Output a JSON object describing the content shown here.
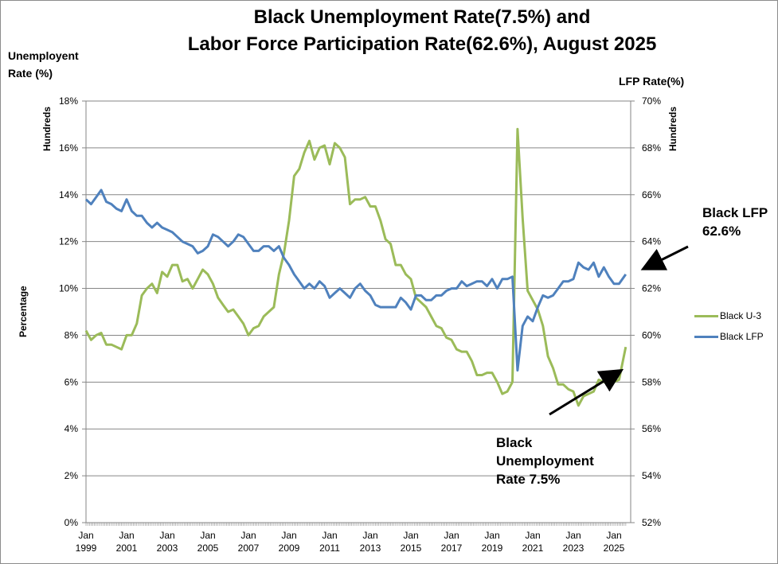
{
  "chart_data": {
    "type": "line",
    "title_line1": "Black Unemployment Rate(7.5%) and",
    "title_line2": "Labor Force Participation Rate(62.6%), August 2025",
    "left_axis": {
      "label_line1": "Unemployent",
      "label_line2": "Rate (%)",
      "unit_label": "Hundreds",
      "title": "Percentage",
      "ylim": [
        0,
        18
      ],
      "ticks": [
        "0%",
        "2%",
        "4%",
        "6%",
        "8%",
        "10%",
        "12%",
        "14%",
        "16%",
        "18%"
      ]
    },
    "right_axis": {
      "label": "LFP Rate(%)",
      "unit_label": "Hundreds",
      "ylim": [
        52,
        70
      ],
      "ticks": [
        "52%",
        "54%",
        "56%",
        "58%",
        "60%",
        "62%",
        "64%",
        "66%",
        "68%",
        "70%"
      ]
    },
    "x_ticks": [
      {
        "month": "Jan",
        "year": "1999"
      },
      {
        "month": "Jan",
        "year": "2001"
      },
      {
        "month": "Jan",
        "year": "2003"
      },
      {
        "month": "Jan",
        "year": "2005"
      },
      {
        "month": "Jan",
        "year": "2007"
      },
      {
        "month": "Jan",
        "year": "2009"
      },
      {
        "month": "Jan",
        "year": "2011"
      },
      {
        "month": "Jan",
        "year": "2013"
      },
      {
        "month": "Jan",
        "year": "2015"
      },
      {
        "month": "Jan",
        "year": "2017"
      },
      {
        "month": "Jan",
        "year": "2019"
      },
      {
        "month": "Jan",
        "year": "2021"
      },
      {
        "month": "Jan",
        "year": "2023"
      },
      {
        "month": "Jan",
        "year": "2025"
      }
    ],
    "x_start": 1999,
    "x_step": 0.25,
    "grid": true,
    "legend_position": "right",
    "series": [
      {
        "name": "Black U-3",
        "axis": "left",
        "color": "#9bbb59",
        "values": [
          8.2,
          7.8,
          8.0,
          8.1,
          7.6,
          7.6,
          7.5,
          7.4,
          8.0,
          8.0,
          8.5,
          9.7,
          10.0,
          10.2,
          9.8,
          10.7,
          10.5,
          11.0,
          11.0,
          10.3,
          10.4,
          10.0,
          10.4,
          10.8,
          10.6,
          10.2,
          9.6,
          9.3,
          9.0,
          9.1,
          8.8,
          8.5,
          8.0,
          8.3,
          8.4,
          8.8,
          9.0,
          9.2,
          10.6,
          11.5,
          12.9,
          14.8,
          15.1,
          15.8,
          16.3,
          15.5,
          16.0,
          16.1,
          15.3,
          16.2,
          16.0,
          15.6,
          13.6,
          13.8,
          13.8,
          13.9,
          13.5,
          13.5,
          12.9,
          12.1,
          11.9,
          11.0,
          11.0,
          10.6,
          10.4,
          9.6,
          9.4,
          9.2,
          8.8,
          8.4,
          8.3,
          7.9,
          7.8,
          7.4,
          7.3,
          7.3,
          6.9,
          6.3,
          6.3,
          6.4,
          6.4,
          6.0,
          5.5,
          5.6,
          6.0,
          16.8,
          13.0,
          9.9,
          9.5,
          9.1,
          8.4,
          7.1,
          6.6,
          5.9,
          5.9,
          5.7,
          5.6,
          5.0,
          5.4,
          5.5,
          5.6,
          6.1,
          6.0,
          6.0,
          6.0,
          6.1,
          7.5
        ]
      },
      {
        "name": "Black LFP",
        "axis": "right",
        "color": "#4f81bd",
        "values": [
          65.8,
          65.6,
          65.9,
          66.2,
          65.7,
          65.6,
          65.4,
          65.3,
          65.8,
          65.3,
          65.1,
          65.1,
          64.8,
          64.6,
          64.8,
          64.6,
          64.5,
          64.4,
          64.2,
          64.0,
          63.9,
          63.8,
          63.5,
          63.6,
          63.8,
          64.3,
          64.2,
          64.0,
          63.8,
          64.0,
          64.3,
          64.2,
          63.9,
          63.6,
          63.6,
          63.8,
          63.8,
          63.6,
          63.8,
          63.3,
          63.0,
          62.6,
          62.3,
          62.0,
          62.2,
          62.0,
          62.3,
          62.1,
          61.6,
          61.8,
          62.0,
          61.8,
          61.6,
          62.0,
          62.2,
          61.9,
          61.7,
          61.3,
          61.2,
          61.2,
          61.2,
          61.2,
          61.6,
          61.4,
          61.1,
          61.7,
          61.7,
          61.5,
          61.5,
          61.7,
          61.7,
          61.9,
          62.0,
          62.0,
          62.3,
          62.1,
          62.2,
          62.3,
          62.3,
          62.1,
          62.4,
          62.0,
          62.4,
          62.4,
          62.5,
          58.5,
          60.4,
          60.8,
          60.6,
          61.2,
          61.7,
          61.6,
          61.7,
          62.0,
          62.3,
          62.3,
          62.4,
          63.1,
          62.9,
          62.8,
          63.1,
          62.5,
          62.9,
          62.5,
          62.2,
          62.2,
          62.6
        ]
      }
    ],
    "annotations": {
      "lfp_line1": "Black LFP",
      "lfp_line2": "62.6%",
      "unemp_line1": "Black",
      "unemp_line2": "Unemployment",
      "unemp_line3": "Rate 7.5%"
    }
  }
}
